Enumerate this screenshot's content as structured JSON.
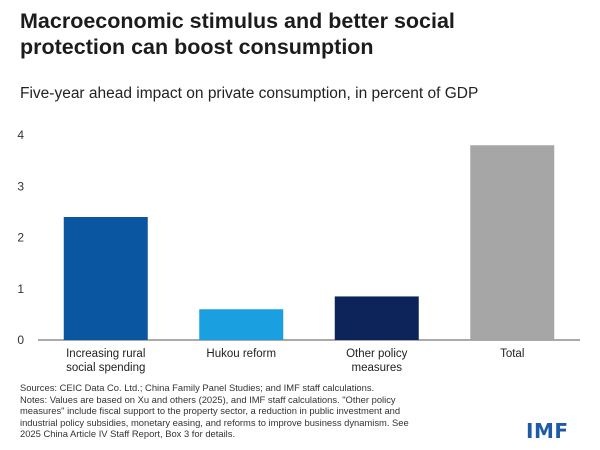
{
  "header": {
    "title_line1": "Macroeconomic stimulus and better social",
    "title_line2": "protection can boost consumption"
  },
  "chart_data": {
    "type": "bar",
    "subtitle": "Five-year ahead impact on private consumption, in percent of GDP",
    "categories": [
      [
        "Increasing rural",
        "social spending"
      ],
      [
        "Hukou reform"
      ],
      [
        "Other policy",
        "measures"
      ],
      [
        "Total"
      ]
    ],
    "values": [
      2.4,
      0.6,
      0.85,
      3.8
    ],
    "colors": [
      "#0b56a0",
      "#1a9fe0",
      "#0c2459",
      "#a6a6a6"
    ],
    "ylim": [
      0,
      4
    ],
    "yticks": [
      0,
      1,
      2,
      3,
      4
    ],
    "xlabel": "",
    "ylabel": ""
  },
  "footer": {
    "sources": "Sources: CEIC Data Co. Ltd.; China Family Panel Studies; and IMF staff calculations.",
    "notes_1": "Notes: Values are based on  Xu and others (2025), and IMF staff calculations. \"Other policy",
    "notes_2": "measures\" include fiscal support to the property sector, a reduction in public investment and",
    "notes_3": "industrial policy subsidies, monetary easing, and reforms to improve business dynamism. See",
    "notes_4": "2025 China Article IV Staff Report, Box 3 for details."
  },
  "logo": {
    "text": "IMF"
  }
}
